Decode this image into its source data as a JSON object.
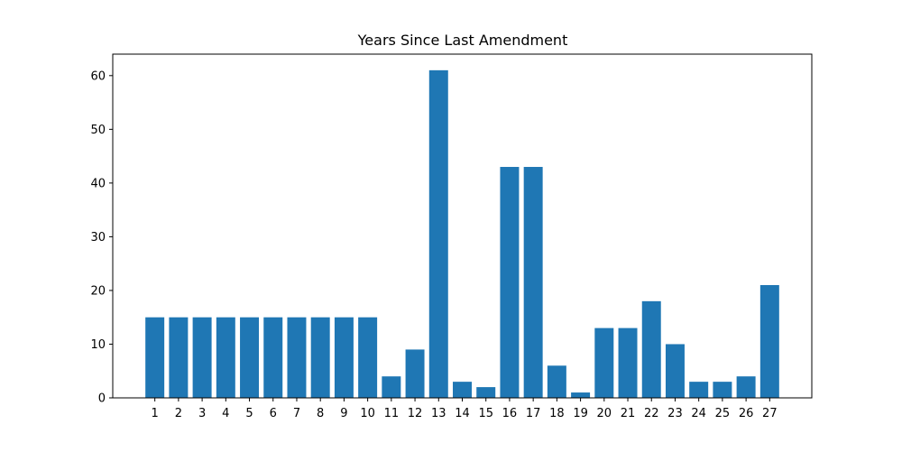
{
  "chart_data": {
    "type": "bar",
    "title": "Years Since Last Amendment",
    "xlabel": "",
    "ylabel": "",
    "categories": [
      "1",
      "2",
      "3",
      "4",
      "5",
      "6",
      "7",
      "8",
      "9",
      "10",
      "11",
      "12",
      "13",
      "14",
      "15",
      "16",
      "17",
      "18",
      "19",
      "20",
      "21",
      "22",
      "23",
      "24",
      "25",
      "26",
      "27"
    ],
    "values": [
      15,
      15,
      15,
      15,
      15,
      15,
      15,
      15,
      15,
      15,
      4,
      9,
      61,
      3,
      2,
      43,
      43,
      6,
      1,
      13,
      13,
      18,
      10,
      3,
      3,
      4,
      21
    ],
    "ylim": [
      0,
      64
    ],
    "yticks": [
      0,
      10,
      20,
      30,
      40,
      50,
      60
    ],
    "grid": false,
    "bar_color": "#1f77b4"
  }
}
